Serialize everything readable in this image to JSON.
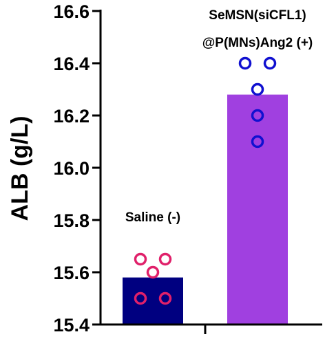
{
  "chart_data": {
    "type": "bar",
    "ylabel": "ALB (g/L)",
    "ylim": [
      15.4,
      16.6
    ],
    "yticks": [
      15.4,
      15.6,
      15.8,
      16.0,
      16.2,
      16.4,
      16.6
    ],
    "ytick_labels": [
      "15.4",
      "15.6",
      "15.8",
      "16.0",
      "16.2",
      "16.4",
      "16.6"
    ],
    "grid": false,
    "series": [
      {
        "annotation": [
          "Saline (-)"
        ],
        "bar_value": 15.58,
        "bar_color": "#000080",
        "point_color": "#e0206a",
        "points": [
          15.65,
          15.65,
          15.6,
          15.5,
          15.5
        ]
      },
      {
        "annotation": [
          "SeMSN(siCFL1)",
          "@P(MNs)Ang2 (+)"
        ],
        "bar_value": 16.28,
        "bar_color": "#a040e0",
        "point_color": "#1010d0",
        "points": [
          16.4,
          16.4,
          16.3,
          16.2,
          16.1
        ]
      }
    ]
  }
}
